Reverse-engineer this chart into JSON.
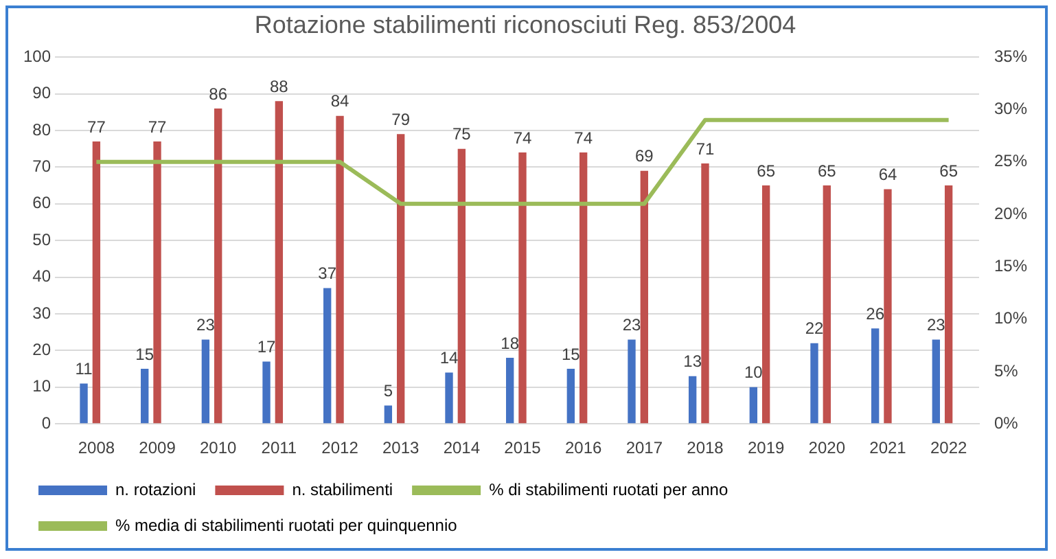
{
  "chart_data": {
    "type": "bar",
    "title": "Rotazione stabilimenti riconosciuti Reg. 853/2004",
    "categories": [
      "2008",
      "2009",
      "2010",
      "2011",
      "2012",
      "2013",
      "2014",
      "2015",
      "2016",
      "2017",
      "2018",
      "2019",
      "2020",
      "2021",
      "2022"
    ],
    "series": [
      {
        "name": "n. rotazioni",
        "color": "#4472c4",
        "values": [
          11,
          15,
          23,
          17,
          37,
          5,
          14,
          18,
          15,
          23,
          13,
          10,
          22,
          26,
          23
        ],
        "value_labels": [
          "11",
          "15",
          "23",
          "17",
          "37",
          "5",
          "14",
          "18",
          "15",
          "23",
          "13",
          "10",
          "22",
          "26",
          "23"
        ]
      },
      {
        "name": "n. stabilimenti",
        "color": "#c0504d",
        "values": [
          77,
          77,
          86,
          88,
          84,
          79,
          75,
          74,
          74,
          69,
          71,
          65,
          65,
          64,
          65
        ],
        "value_labels": [
          "77",
          "77",
          "86",
          "88",
          "84",
          "79",
          "75",
          "74",
          "74",
          "69",
          "71",
          "65",
          "65",
          "64",
          "65"
        ]
      },
      {
        "name": "% di stabilimenti ruotati per anno",
        "color": "#9bbb59",
        "values": [
          null,
          null,
          null,
          null,
          null,
          null,
          null,
          null,
          null,
          null,
          null,
          null,
          null,
          null,
          null
        ]
      },
      {
        "name": "% media di stabilimenti ruotati per quinquennio",
        "type": "line",
        "axis": "y2",
        "color": "#9bbb59",
        "values": [
          25,
          25,
          25,
          25,
          25,
          21,
          21,
          21,
          21,
          21,
          29,
          29,
          29,
          29,
          29
        ]
      }
    ],
    "ylim": [
      0,
      100
    ],
    "yticks": [
      0,
      10,
      20,
      30,
      40,
      50,
      60,
      70,
      80,
      90,
      100
    ],
    "y2lim": [
      0,
      35
    ],
    "y2ticks": [
      {
        "value": 0,
        "label": "0%"
      },
      {
        "value": 5,
        "label": "5%"
      },
      {
        "value": 10,
        "label": "10%"
      },
      {
        "value": 15,
        "label": "15%"
      },
      {
        "value": 20,
        "label": "20%"
      },
      {
        "value": 25,
        "label": "25%"
      },
      {
        "value": 30,
        "label": "30%"
      },
      {
        "value": 35,
        "label": "35%"
      }
    ],
    "grid": "y",
    "legend": "bottom",
    "marker": "none",
    "line_style": "solid"
  }
}
